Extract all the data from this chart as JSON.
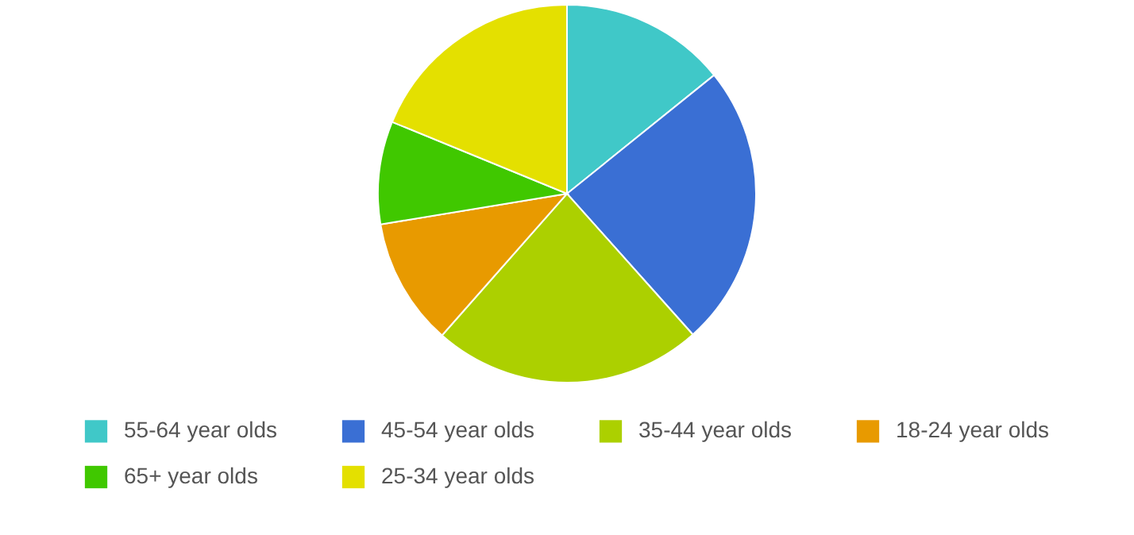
{
  "chart_data": {
    "type": "pie",
    "categories": [
      "55-64 year olds",
      "45-54 year olds",
      "35-44 year olds",
      "18-24 year olds",
      "65+ year olds",
      "25-34 year olds"
    ],
    "values": [
      14.2,
      24.2,
      23.1,
      10.9,
      8.8,
      18.8
    ],
    "colors": [
      "#40c8c8",
      "#3a6fd4",
      "#acd000",
      "#e89a00",
      "#40c800",
      "#e4e000"
    ],
    "legend": "bottom"
  }
}
